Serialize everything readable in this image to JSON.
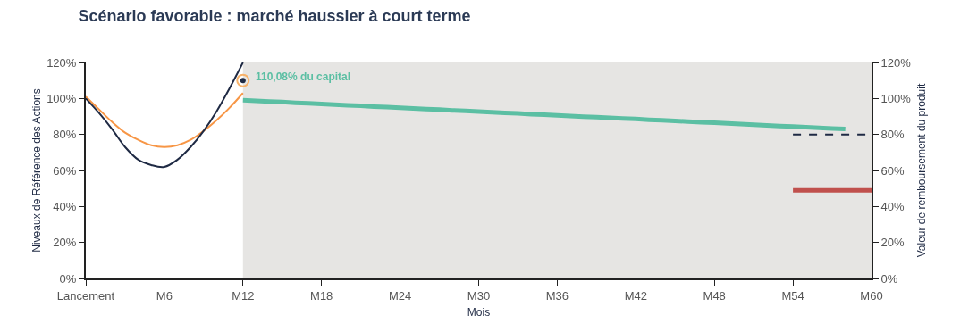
{
  "chart_data": {
    "type": "line",
    "title": "Scénario favorable : marché haussier à court terme",
    "xlabel": "Mois",
    "ylabel": "Niveaux de Référence des Actions",
    "y2label": "Valeur de remboursement du produit",
    "categories": [
      "Lancement",
      null,
      null,
      null,
      null,
      null,
      "M6",
      null,
      null,
      null,
      null,
      null,
      "M12",
      null,
      null,
      null,
      null,
      null,
      "M18",
      null,
      null,
      null,
      null,
      null,
      "M24",
      null,
      null,
      null,
      null,
      null,
      "M30",
      null,
      null,
      null,
      null,
      null,
      "M36",
      null,
      null,
      null,
      null,
      null,
      "M42",
      null,
      null,
      null,
      null,
      null,
      "M48",
      null,
      null,
      null,
      null,
      null,
      "M54",
      null,
      null,
      null,
      null,
      null,
      "M60"
    ],
    "ylim": [
      0,
      120
    ],
    "yticks": [
      {
        "value": 0,
        "label": "0%"
      },
      {
        "value": 20,
        "label": "20%"
      },
      {
        "value": 40,
        "label": "40%"
      },
      {
        "value": 60,
        "label": "60%"
      },
      {
        "value": 80,
        "label": "80%"
      },
      {
        "value": 100,
        "label": "100%"
      },
      {
        "value": 120,
        "label": "120%"
      }
    ],
    "y2lim": [
      0,
      120
    ],
    "y2ticks": [
      {
        "value": 0,
        "label": "0%"
      },
      {
        "value": 20,
        "label": "20%"
      },
      {
        "value": 40,
        "label": "40%"
      },
      {
        "value": 60,
        "label": "60%"
      },
      {
        "value": 80,
        "label": "80%"
      },
      {
        "value": 100,
        "label": "100%"
      },
      {
        "value": 120,
        "label": "120%"
      }
    ],
    "series": [
      {
        "color": "#f79646",
        "values": [
          101,
          94,
          87,
          81,
          77,
          74,
          73,
          74,
          77,
          82,
          88,
          95,
          103,
          null,
          null,
          null,
          null,
          null,
          null,
          null,
          null,
          null,
          null,
          null,
          null,
          null,
          null,
          null,
          null,
          null,
          null,
          null,
          null,
          null,
          null,
          null,
          null,
          null,
          null,
          null,
          null,
          null,
          null,
          null,
          null,
          null,
          null,
          null,
          null,
          null,
          null,
          null,
          null,
          null,
          null,
          null,
          null,
          null,
          null,
          null,
          null
        ]
      },
      {
        "color": "#1f2a44",
        "values": [
          100,
          92,
          83,
          73,
          66,
          63,
          62,
          66,
          73,
          82,
          93,
          106,
          120,
          null,
          null,
          null,
          null,
          null,
          null,
          null,
          null,
          null,
          null,
          null,
          null,
          null,
          null,
          null,
          null,
          null,
          null,
          null,
          null,
          null,
          null,
          null,
          null,
          null,
          null,
          null,
          null,
          null,
          null,
          null,
          null,
          null,
          null,
          null,
          null,
          null,
          null,
          null,
          null,
          null,
          null,
          null,
          null,
          null,
          null,
          null,
          null
        ]
      },
      {
        "type": "scatter",
        "marker": "circle",
        "color": "#1f2a44",
        "values": [
          null,
          null,
          null,
          null,
          null,
          null,
          null,
          null,
          null,
          null,
          null,
          null,
          110,
          null,
          null,
          null,
          null,
          null,
          null,
          null,
          null,
          null,
          null,
          null,
          null,
          null,
          null,
          null,
          null,
          null,
          null,
          null,
          null,
          null,
          null,
          null,
          null,
          null,
          null,
          null,
          null,
          null,
          null,
          null,
          null,
          null,
          null,
          null,
          null,
          null,
          null,
          null,
          null,
          null,
          null,
          null,
          null,
          null,
          null,
          null,
          null
        ]
      },
      {
        "axis": "y2",
        "color": "#5bbfa3",
        "values": [
          null,
          null,
          null,
          null,
          null,
          null,
          null,
          null,
          null,
          null,
          null,
          null,
          99.0,
          98.7,
          98.3,
          98.0,
          97.6,
          97.3,
          96.9,
          96.6,
          96.2,
          95.9,
          95.5,
          95.2,
          94.8,
          94.5,
          94.1,
          93.8,
          93.4,
          93.1,
          92.7,
          92.4,
          92.0,
          91.7,
          91.3,
          91.0,
          90.6,
          90.3,
          89.9,
          89.6,
          89.3,
          88.9,
          88.6,
          88.2,
          87.9,
          87.5,
          87.2,
          86.8,
          86.5,
          86.1,
          85.8,
          85.4,
          85.1,
          84.7,
          84.4,
          84.0,
          83.7,
          83.3,
          83.0,
          null,
          null
        ]
      },
      {
        "axis": "y2",
        "color": "#1f2a44",
        "line_style": "dashed",
        "values": [
          null,
          null,
          null,
          null,
          null,
          null,
          null,
          null,
          null,
          null,
          null,
          null,
          null,
          null,
          null,
          null,
          null,
          null,
          null,
          null,
          null,
          null,
          null,
          null,
          null,
          null,
          null,
          null,
          null,
          null,
          null,
          null,
          null,
          null,
          null,
          null,
          null,
          null,
          null,
          null,
          null,
          null,
          null,
          null,
          null,
          null,
          null,
          null,
          null,
          null,
          null,
          null,
          null,
          null,
          80,
          80,
          80,
          80,
          80,
          80,
          80
        ]
      },
      {
        "axis": "y2",
        "color": "#c0504d",
        "values": [
          null,
          null,
          null,
          null,
          null,
          null,
          null,
          null,
          null,
          null,
          null,
          null,
          null,
          null,
          null,
          null,
          null,
          null,
          null,
          null,
          null,
          null,
          null,
          null,
          null,
          null,
          null,
          null,
          null,
          null,
          null,
          null,
          null,
          null,
          null,
          null,
          null,
          null,
          null,
          null,
          null,
          null,
          null,
          null,
          null,
          null,
          null,
          null,
          null,
          null,
          null,
          null,
          null,
          null,
          49,
          49,
          49,
          49,
          49,
          49,
          49
        ]
      }
    ],
    "bands": [
      {
        "axis": "x",
        "from": "M12",
        "to": "M60",
        "color": "#e6e5e3"
      }
    ],
    "annotations": [
      {
        "text": "110,08% du capital",
        "x": "M12",
        "y": 110
      }
    ],
    "grid": false,
    "line_style": "solid",
    "marker": "none"
  }
}
